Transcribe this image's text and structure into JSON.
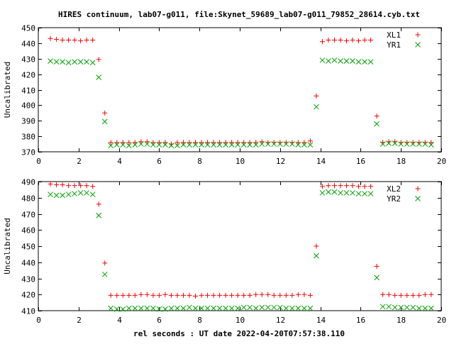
{
  "title": "HIRES continuum, lab07-g011, file:Skynet_59689_lab07-g011_79852_28614.cyb.txt",
  "xlabel": "rel seconds : UT date 2022-04-20T07:57:38.110",
  "colors": {
    "red": "#ff0000",
    "green": "#00a000",
    "axis": "#000000"
  },
  "chart_data": [
    {
      "type": "scatter",
      "ylabel": "Uncalibrated",
      "xlim": [
        0,
        20
      ],
      "ylim": [
        370,
        450
      ],
      "xticks": [
        0,
        2,
        4,
        6,
        8,
        10,
        12,
        14,
        16,
        18,
        20
      ],
      "yticks": [
        370,
        380,
        390,
        400,
        410,
        420,
        430,
        440,
        450
      ],
      "legend_position": "top-right",
      "series": [
        {
          "name": "XL1",
          "marker": "plus",
          "color": "#ff0000",
          "x": [
            0.6,
            0.9,
            1.2,
            1.5,
            1.8,
            2.1,
            2.4,
            2.7,
            3.0,
            3.3,
            3.6,
            3.9,
            4.2,
            4.5,
            4.8,
            5.1,
            5.4,
            5.7,
            6.0,
            6.3,
            6.6,
            6.9,
            7.2,
            7.5,
            7.8,
            8.1,
            8.4,
            8.7,
            9.0,
            9.3,
            9.6,
            9.9,
            10.2,
            10.5,
            10.8,
            11.1,
            11.4,
            11.7,
            12.0,
            12.3,
            12.6,
            12.9,
            13.2,
            13.5,
            13.8,
            14.1,
            14.4,
            14.7,
            15.0,
            15.3,
            15.6,
            15.9,
            16.2,
            16.5,
            16.8,
            17.1,
            17.4,
            17.7,
            18.0,
            18.3,
            18.6,
            18.9,
            19.2,
            19.5
          ],
          "y": [
            443,
            442.5,
            442,
            442,
            442,
            441.5,
            442,
            442,
            429.5,
            395,
            376,
            376,
            376,
            376,
            376,
            376.5,
            376.5,
            376,
            376,
            376,
            375,
            376,
            376,
            376,
            376,
            376,
            376,
            376,
            376,
            376,
            376,
            376,
            376,
            376,
            376,
            376.5,
            376,
            376,
            376,
            376,
            376,
            376,
            376,
            377,
            406,
            441,
            442,
            442,
            442,
            441.5,
            442,
            441.5,
            442,
            442,
            393,
            376,
            376.5,
            376.5,
            376,
            376,
            376,
            376,
            376,
            376
          ]
        },
        {
          "name": "YR1",
          "marker": "cross",
          "color": "#00a000",
          "x": [
            0.6,
            0.9,
            1.2,
            1.5,
            1.8,
            2.1,
            2.4,
            2.7,
            3.0,
            3.3,
            3.6,
            3.9,
            4.2,
            4.5,
            4.8,
            5.1,
            5.4,
            5.7,
            6.0,
            6.3,
            6.6,
            6.9,
            7.2,
            7.5,
            7.8,
            8.1,
            8.4,
            8.7,
            9.0,
            9.3,
            9.6,
            9.9,
            10.2,
            10.5,
            10.8,
            11.1,
            11.4,
            11.7,
            12.0,
            12.3,
            12.6,
            12.9,
            13.2,
            13.5,
            13.8,
            14.1,
            14.4,
            14.7,
            15.0,
            15.3,
            15.6,
            15.9,
            16.2,
            16.5,
            16.8,
            17.1,
            17.4,
            17.7,
            18.0,
            18.3,
            18.6,
            18.9,
            19.2,
            19.5
          ],
          "y": [
            428.5,
            428,
            428,
            427.5,
            428,
            428,
            428,
            427.5,
            418,
            389.5,
            374,
            374.5,
            374.5,
            374,
            374.5,
            375,
            375,
            374.5,
            374.5,
            374.5,
            374,
            374,
            374.5,
            374.5,
            374.5,
            374.5,
            374.5,
            374.5,
            374.5,
            374.5,
            374.5,
            374.5,
            374.5,
            374.5,
            374.5,
            375,
            375,
            375,
            375,
            375,
            375,
            374.5,
            374.5,
            374.5,
            399,
            429,
            428.5,
            429,
            428.5,
            428.5,
            428.5,
            428,
            428,
            428,
            388,
            375,
            375.5,
            375.5,
            375,
            375,
            375,
            375,
            375,
            374.5
          ]
        }
      ]
    },
    {
      "type": "scatter",
      "ylabel": "Uncalibrated",
      "xlim": [
        0,
        20
      ],
      "ylim": [
        410,
        490
      ],
      "xticks": [
        0,
        2,
        4,
        6,
        8,
        10,
        12,
        14,
        16,
        18,
        20
      ],
      "yticks": [
        410,
        420,
        430,
        440,
        450,
        460,
        470,
        480,
        490
      ],
      "legend_position": "top-right",
      "series": [
        {
          "name": "XL2",
          "marker": "plus",
          "color": "#ff0000",
          "x": [
            0.6,
            0.9,
            1.2,
            1.5,
            1.8,
            2.1,
            2.4,
            2.7,
            3.0,
            3.3,
            3.6,
            3.9,
            4.2,
            4.5,
            4.8,
            5.1,
            5.4,
            5.7,
            6.0,
            6.3,
            6.6,
            6.9,
            7.2,
            7.5,
            7.8,
            8.1,
            8.4,
            8.7,
            9.0,
            9.3,
            9.6,
            9.9,
            10.2,
            10.5,
            10.8,
            11.1,
            11.4,
            11.7,
            12.0,
            12.3,
            12.6,
            12.9,
            13.2,
            13.5,
            13.8,
            14.1,
            14.4,
            14.7,
            15.0,
            15.3,
            15.6,
            15.9,
            16.2,
            16.5,
            16.8,
            17.1,
            17.4,
            17.7,
            18.0,
            18.3,
            18.6,
            18.9,
            19.2,
            19.5
          ],
          "y": [
            488.5,
            488,
            488,
            487.5,
            487.5,
            487.5,
            487.5,
            487,
            476,
            439.5,
            419.5,
            419.5,
            419.5,
            419.5,
            419.5,
            420,
            420,
            419.5,
            419.5,
            420,
            419.5,
            419.5,
            419.5,
            419.5,
            419,
            419.5,
            419.5,
            419.5,
            419.5,
            419.5,
            419.5,
            419.5,
            419.5,
            419.5,
            420,
            420,
            420,
            419.5,
            419.5,
            419.5,
            419.5,
            420,
            420,
            419.5,
            450,
            487,
            487.5,
            487.5,
            487.5,
            487.5,
            487.5,
            487,
            487,
            487,
            437.5,
            420,
            420,
            419.5,
            419.5,
            419.5,
            419.5,
            419.5,
            420,
            420
          ]
        },
        {
          "name": "YR2",
          "marker": "cross",
          "color": "#00a000",
          "x": [
            0.6,
            0.9,
            1.2,
            1.5,
            1.8,
            2.1,
            2.4,
            2.7,
            3.0,
            3.3,
            3.6,
            3.9,
            4.2,
            4.5,
            4.8,
            5.1,
            5.4,
            5.7,
            6.0,
            6.3,
            6.6,
            6.9,
            7.2,
            7.5,
            7.8,
            8.1,
            8.4,
            8.7,
            9.0,
            9.3,
            9.6,
            9.9,
            10.2,
            10.5,
            10.8,
            11.1,
            11.4,
            11.7,
            12.0,
            12.3,
            12.6,
            12.9,
            13.2,
            13.5,
            13.8,
            14.1,
            14.4,
            14.7,
            15.0,
            15.3,
            15.6,
            15.9,
            16.2,
            16.5,
            16.8,
            17.1,
            17.4,
            17.7,
            18.0,
            18.3,
            18.6,
            18.9,
            19.2,
            19.5
          ],
          "y": [
            482,
            481.5,
            481.5,
            482,
            482.5,
            483,
            483,
            482,
            469,
            432.5,
            411.5,
            411,
            411,
            411.5,
            411.5,
            411.5,
            411.5,
            411.5,
            411,
            411,
            411.5,
            411.5,
            411.5,
            412,
            411.5,
            411.5,
            411.5,
            411.5,
            411.5,
            411.5,
            411.5,
            411.5,
            412,
            412,
            411.5,
            412,
            412,
            412,
            412,
            411.5,
            411.5,
            411.5,
            411.5,
            411.5,
            444,
            483,
            483.5,
            483.5,
            483,
            483,
            483,
            482.5,
            482.5,
            482.5,
            430.5,
            412.5,
            412.5,
            412,
            412,
            412,
            412,
            411.5,
            411.5,
            411.5
          ]
        }
      ]
    }
  ]
}
